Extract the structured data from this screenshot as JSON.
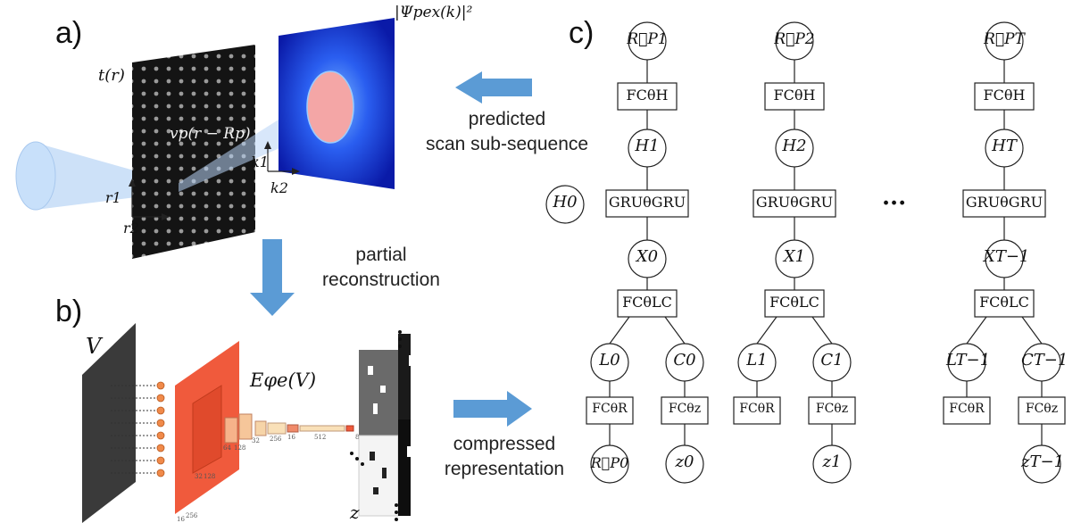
{
  "panels": {
    "a": "a)",
    "b": "b)",
    "c": "c)"
  },
  "panel_a": {
    "t_label": "t(r)",
    "probe_label": "vp(r − Rp)",
    "psi_label": "|Ψpex(k)|²",
    "axes_real": [
      "r1",
      "r2"
    ],
    "axes_recip": [
      "k1",
      "k2"
    ]
  },
  "captions": {
    "predicted": "predicted\nscan sub-sequence",
    "partial": "partial\nreconstruction",
    "compressed": "compressed\nrepresentation"
  },
  "panel_b": {
    "v_label": "V",
    "encoder_label": "Eφe(V)",
    "z_label": "z",
    "layer_sizes": [
      "16",
      "256",
      "32",
      "128",
      "64",
      "128",
      "32",
      "256",
      "16",
      "512",
      "8"
    ]
  },
  "panel_c": {
    "ellipsis": "...",
    "columns": [
      {
        "R_out": "R⃗P1",
        "FCH": "FCθH",
        "H": "H1",
        "GRU": "GRUθGRU",
        "X": "X0",
        "FCLC": "FCθLC",
        "L": "L0",
        "C": "C0",
        "FCR": "FCθR",
        "FCz": "FCθz",
        "R_in": "R⃗P0",
        "z": "z0"
      },
      {
        "R_out": "R⃗P2",
        "FCH": "FCθH",
        "H": "H2",
        "GRU": "GRUθGRU",
        "X": "X1",
        "FCLC": "FCθLC",
        "L": "L1",
        "C": "C1",
        "FCR": "FCθR",
        "FCz": "FCθz",
        "R_in": "",
        "z": "z1"
      },
      {
        "R_out": "R⃗PT",
        "FCH": "FCθH",
        "H": "HT",
        "GRU": "GRUθGRU",
        "X": "XT−1",
        "FCLC": "FCθLC",
        "L": "LT−1",
        "C": "CT−1",
        "FCR": "FCθR",
        "FCz": "FCθz",
        "R_in": "",
        "z": "zT−1"
      }
    ],
    "H0": "H0"
  },
  "colors": {
    "arrow_blue": "#5b9bd5",
    "encoder_red": "#f05a3c",
    "diffraction_blue": "#1a2fd0",
    "beam_blue": "#b8d4f5"
  }
}
